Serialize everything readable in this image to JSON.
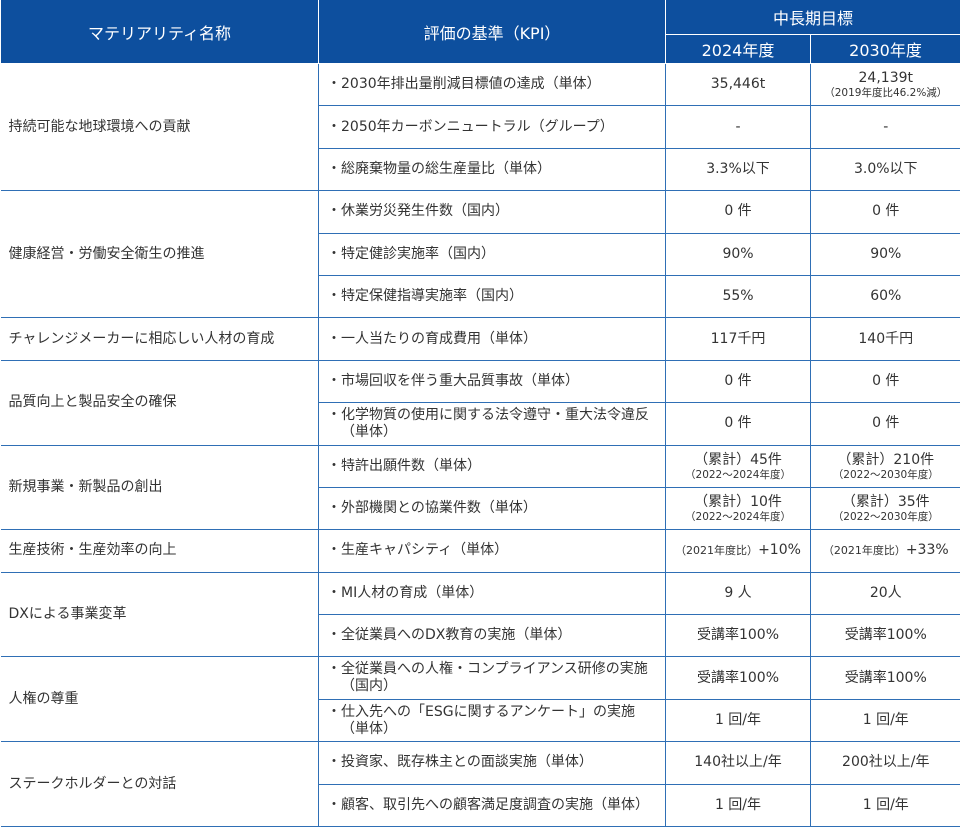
{
  "header": {
    "col_name": "マテリアリティ名称",
    "col_kpi": "評価の基準（KPI）",
    "col_target": "中長期目標",
    "col_2024": "2024年度",
    "col_2030": "2030年度"
  },
  "groups": [
    {
      "name": "持続可能な地球環境への貢献",
      "items": [
        {
          "kpi": "・2030年排出量削減目標値の達成（単体）",
          "y2024": {
            "main": "35,446t"
          },
          "y2030": {
            "main": "24,139t",
            "note": "（2019年度比46.2%減）"
          }
        },
        {
          "kpi": "・2050年カーボンニュートラル（グループ）",
          "y2024": {
            "main": "-"
          },
          "y2030": {
            "main": "-"
          }
        },
        {
          "kpi": "・総廃棄物量の総生産量比（単体）",
          "y2024": {
            "main": "3.3%以下"
          },
          "y2030": {
            "main": "3.0%以下"
          }
        }
      ]
    },
    {
      "name": "健康経営・労働安全衛生の推進",
      "items": [
        {
          "kpi": "・休業労災発生件数（国内）",
          "y2024": {
            "main": "0 件"
          },
          "y2030": {
            "main": "0 件"
          }
        },
        {
          "kpi": "・特定健診実施率（国内）",
          "y2024": {
            "main": "90%"
          },
          "y2030": {
            "main": "90%"
          }
        },
        {
          "kpi": "・特定保健指導実施率（国内）",
          "y2024": {
            "main": "55%"
          },
          "y2030": {
            "main": "60%"
          }
        }
      ]
    },
    {
      "name": "チャレンジメーカーに相応しい人材の育成",
      "items": [
        {
          "kpi": "・一人当たりの育成費用（単体）",
          "y2024": {
            "main": "117千円"
          },
          "y2030": {
            "main": "140千円"
          }
        }
      ]
    },
    {
      "name": "品質向上と製品安全の確保",
      "items": [
        {
          "kpi": "・市場回収を伴う重大品質事故（単体）",
          "y2024": {
            "main": "0 件"
          },
          "y2030": {
            "main": "0 件"
          }
        },
        {
          "kpi": "・化学物質の使用に関する法令遵守・重大法令違反（単体）",
          "y2024": {
            "main": "0 件"
          },
          "y2030": {
            "main": "0 件"
          }
        }
      ]
    },
    {
      "name": "新規事業・新製品の創出",
      "items": [
        {
          "kpi": "・特許出願件数（単体）",
          "y2024": {
            "main": "（累計）45件",
            "note": "（2022～2024年度）"
          },
          "y2030": {
            "main": "（累計）210件",
            "note": "（2022～2030年度）"
          }
        },
        {
          "kpi": "・外部機関との協業件数（単体）",
          "y2024": {
            "main": "（累計）10件",
            "note": "（2022～2024年度）"
          },
          "y2030": {
            "main": "（累計）35件",
            "note": "（2022～2030年度）"
          }
        }
      ]
    },
    {
      "name": "生産技術・生産効率の向上",
      "items": [
        {
          "kpi": "・生産キャパシティ（単体）",
          "y2024": {
            "prefix": "（2021年度比）",
            "main": "+10%"
          },
          "y2030": {
            "prefix": "（2021年度比）",
            "main": "+33%"
          }
        }
      ]
    },
    {
      "name": "DXによる事業変革",
      "items": [
        {
          "kpi": "・MI人材の育成（単体）",
          "y2024": {
            "main": "9 人"
          },
          "y2030": {
            "main": "20人"
          }
        },
        {
          "kpi": "・全従業員へのDX教育の実施（単体）",
          "y2024": {
            "main": "受講率100%"
          },
          "y2030": {
            "main": "受講率100%"
          }
        }
      ]
    },
    {
      "name": "人権の尊重",
      "items": [
        {
          "kpi": "・全従業員への人権・コンプライアンス研修の実施（国内）",
          "y2024": {
            "main": "受講率100%"
          },
          "y2030": {
            "main": "受講率100%"
          }
        },
        {
          "kpi": "・仕入先への「ESGに関するアンケート」の実施（単体）",
          "y2024": {
            "main": "1 回/年"
          },
          "y2030": {
            "main": "1 回/年"
          }
        }
      ]
    },
    {
      "name": "ステークホルダーとの対話",
      "items": [
        {
          "kpi": "・投資家、既存株主との面談実施（単体）",
          "y2024": {
            "main": "140社以上/年"
          },
          "y2030": {
            "main": "200社以上/年"
          }
        },
        {
          "kpi": "・顧客、取引先への顧客満足度調査の実施（単体）",
          "y2024": {
            "main": "1 回/年"
          },
          "y2030": {
            "main": "1 回/年"
          }
        }
      ]
    }
  ]
}
